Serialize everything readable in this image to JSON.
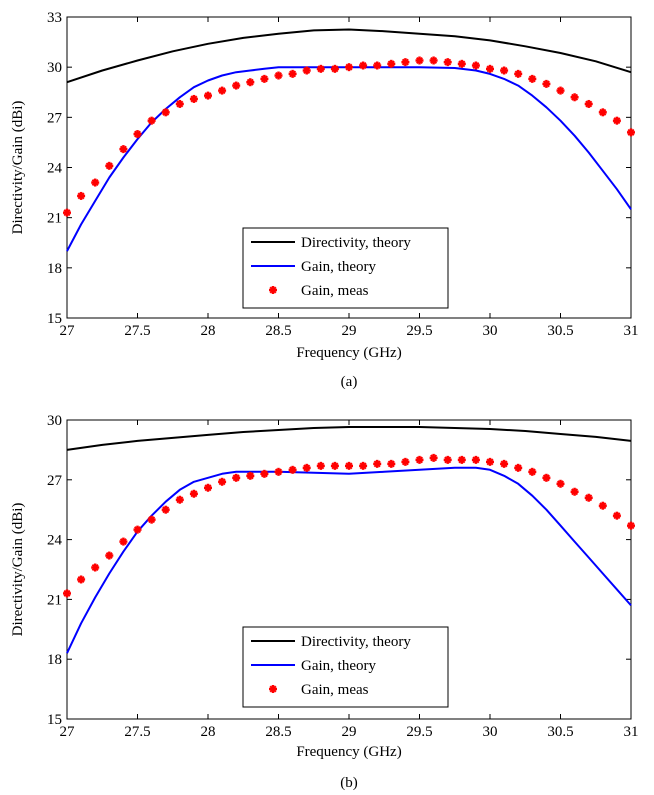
{
  "chart_data": [
    {
      "type": "line",
      "caption": "(a)",
      "xlabel": "Frequency (GHz)",
      "ylabel": "Directivity/Gain (dBi)",
      "xlim": [
        27,
        31
      ],
      "ylim": [
        15,
        33
      ],
      "xticks": [
        27,
        27.5,
        28,
        28.5,
        29,
        29.5,
        30,
        30.5,
        31
      ],
      "yticks": [
        15,
        18,
        21,
        24,
        27,
        30,
        33
      ],
      "xtick_labels": [
        "27",
        "27.5",
        "28",
        "28.5",
        "29",
        "29.5",
        "30",
        "30.5",
        "31"
      ],
      "ytick_labels": [
        "15",
        "18",
        "21",
        "24",
        "27",
        "30",
        "33"
      ],
      "grid": false,
      "legend_position": "lower-center",
      "series": [
        {
          "name": "Directivity, theory",
          "style": "line",
          "color": "#000000",
          "x": [
            27,
            27.25,
            27.5,
            27.75,
            28,
            28.25,
            28.5,
            28.75,
            29,
            29.25,
            29.5,
            29.75,
            30,
            30.25,
            30.5,
            30.75,
            31
          ],
          "y": [
            29.1,
            29.8,
            30.4,
            30.95,
            31.4,
            31.75,
            32.0,
            32.2,
            32.25,
            32.15,
            32.0,
            31.85,
            31.6,
            31.25,
            30.85,
            30.35,
            29.7
          ]
        },
        {
          "name": "Gain, theory",
          "style": "line",
          "color": "#0000ff",
          "x": [
            27,
            27.1,
            27.2,
            27.3,
            27.4,
            27.5,
            27.6,
            27.7,
            27.8,
            27.9,
            28,
            28.1,
            28.2,
            28.3,
            28.4,
            28.5,
            28.75,
            29,
            29.25,
            29.5,
            29.75,
            29.9,
            30,
            30.1,
            30.2,
            30.3,
            30.4,
            30.5,
            30.6,
            30.7,
            30.8,
            30.9,
            31
          ],
          "y": [
            19.0,
            20.6,
            22.0,
            23.4,
            24.6,
            25.7,
            26.7,
            27.5,
            28.2,
            28.8,
            29.2,
            29.5,
            29.7,
            29.8,
            29.9,
            30.0,
            30.0,
            30.0,
            30.0,
            30.0,
            29.95,
            29.8,
            29.6,
            29.3,
            28.9,
            28.3,
            27.6,
            26.8,
            25.9,
            24.9,
            23.8,
            22.7,
            21.5
          ]
        },
        {
          "name": "Gain, meas",
          "style": "marker",
          "color": "#ff0000",
          "x": [
            27,
            27.1,
            27.2,
            27.3,
            27.4,
            27.5,
            27.6,
            27.7,
            27.8,
            27.9,
            28,
            28.1,
            28.2,
            28.3,
            28.4,
            28.5,
            28.6,
            28.7,
            28.8,
            28.9,
            29,
            29.1,
            29.2,
            29.3,
            29.4,
            29.5,
            29.6,
            29.7,
            29.8,
            29.9,
            30,
            30.1,
            30.2,
            30.3,
            30.4,
            30.5,
            30.6,
            30.7,
            30.8,
            30.9,
            31
          ],
          "y": [
            21.3,
            22.3,
            23.1,
            24.1,
            25.1,
            26.0,
            26.8,
            27.3,
            27.8,
            28.1,
            28.3,
            28.6,
            28.9,
            29.1,
            29.3,
            29.5,
            29.6,
            29.8,
            29.9,
            29.9,
            30.0,
            30.1,
            30.1,
            30.2,
            30.3,
            30.4,
            30.4,
            30.3,
            30.2,
            30.1,
            29.9,
            29.8,
            29.6,
            29.3,
            29.0,
            28.6,
            28.2,
            27.8,
            27.3,
            26.8,
            26.1
          ]
        }
      ]
    },
    {
      "type": "line",
      "caption": "(b)",
      "xlabel": "Frequency (GHz)",
      "ylabel": "Directivity/Gain (dBi)",
      "xlim": [
        27,
        31
      ],
      "ylim": [
        15,
        30
      ],
      "xticks": [
        27,
        27.5,
        28,
        28.5,
        29,
        29.5,
        30,
        30.5,
        31
      ],
      "yticks": [
        15,
        18,
        21,
        24,
        27,
        30
      ],
      "xtick_labels": [
        "27",
        "27.5",
        "28",
        "28.5",
        "29",
        "29.5",
        "30",
        "30.5",
        "31"
      ],
      "ytick_labels": [
        "15",
        "18",
        "21",
        "24",
        "27",
        "30"
      ],
      "grid": false,
      "legend_position": "lower-center",
      "series": [
        {
          "name": "Directivity, theory",
          "style": "line",
          "color": "#000000",
          "x": [
            27,
            27.25,
            27.5,
            27.75,
            28,
            28.25,
            28.5,
            28.75,
            29,
            29.25,
            29.5,
            29.75,
            30,
            30.25,
            30.5,
            30.75,
            31
          ],
          "y": [
            28.5,
            28.75,
            28.95,
            29.1,
            29.25,
            29.4,
            29.5,
            29.6,
            29.65,
            29.65,
            29.65,
            29.6,
            29.55,
            29.45,
            29.3,
            29.15,
            28.95
          ]
        },
        {
          "name": "Gain, theory",
          "style": "line",
          "color": "#0000ff",
          "x": [
            27,
            27.1,
            27.2,
            27.3,
            27.4,
            27.5,
            27.6,
            27.7,
            27.8,
            27.9,
            28,
            28.1,
            28.2,
            28.3,
            28.4,
            28.5,
            28.75,
            29,
            29.25,
            29.5,
            29.75,
            29.9,
            30,
            30.1,
            30.2,
            30.3,
            30.4,
            30.5,
            30.6,
            30.7,
            30.8,
            30.9,
            31
          ],
          "y": [
            18.3,
            19.8,
            21.1,
            22.3,
            23.4,
            24.4,
            25.2,
            25.9,
            26.5,
            26.9,
            27.1,
            27.3,
            27.4,
            27.4,
            27.4,
            27.4,
            27.35,
            27.3,
            27.4,
            27.5,
            27.6,
            27.6,
            27.5,
            27.2,
            26.8,
            26.2,
            25.5,
            24.7,
            23.9,
            23.1,
            22.3,
            21.5,
            20.7
          ]
        },
        {
          "name": "Gain, meas",
          "style": "marker",
          "color": "#ff0000",
          "x": [
            27,
            27.1,
            27.2,
            27.3,
            27.4,
            27.5,
            27.6,
            27.7,
            27.8,
            27.9,
            28,
            28.1,
            28.2,
            28.3,
            28.4,
            28.5,
            28.6,
            28.7,
            28.8,
            28.9,
            29,
            29.1,
            29.2,
            29.3,
            29.4,
            29.5,
            29.6,
            29.7,
            29.8,
            29.9,
            30,
            30.1,
            30.2,
            30.3,
            30.4,
            30.5,
            30.6,
            30.7,
            30.8,
            30.9,
            31
          ],
          "y": [
            21.3,
            22.0,
            22.6,
            23.2,
            23.9,
            24.5,
            25.0,
            25.5,
            26.0,
            26.3,
            26.6,
            26.9,
            27.1,
            27.2,
            27.3,
            27.4,
            27.5,
            27.6,
            27.7,
            27.7,
            27.7,
            27.7,
            27.8,
            27.8,
            27.9,
            28.0,
            28.1,
            28.0,
            28.0,
            28.0,
            27.9,
            27.8,
            27.6,
            27.4,
            27.1,
            26.8,
            26.4,
            26.1,
            25.7,
            25.2,
            24.7
          ]
        }
      ]
    }
  ]
}
